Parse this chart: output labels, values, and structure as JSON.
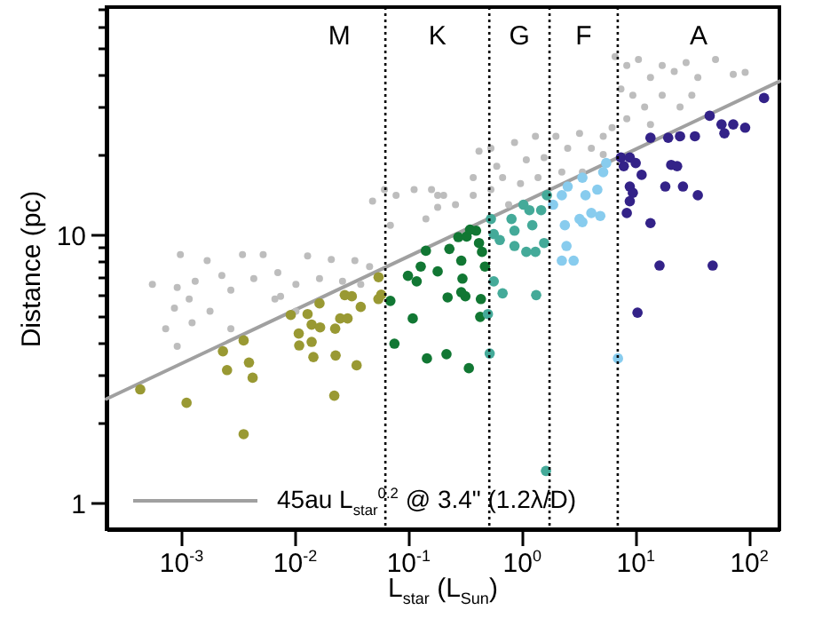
{
  "chart_data": {
    "type": "scatter",
    "xlabel": "L$_{star}$ (L$_{Sun}$)",
    "ylabel": "Distance (pc)",
    "log": "xy",
    "marker": "circle",
    "legend": "bottom left",
    "xlim": [
      0.000217,
      183
    ],
    "ylim": [
      0.8,
      71
    ],
    "xticks": [
      {
        "value": 0.001,
        "label": "10$^{-3}$"
      },
      {
        "value": 0.01,
        "label": "10$^{-2}$"
      },
      {
        "value": 0.1,
        "label": "10$^{-1}$"
      },
      {
        "value": 1,
        "label": "10$^{0}$"
      },
      {
        "value": 10,
        "label": "10$^{1}$"
      },
      {
        "value": 100,
        "label": "10$^{2}$"
      }
    ],
    "yticks": [
      1,
      {
        "value": 2,
        "label": null
      },
      {
        "value": 3,
        "label": null
      },
      {
        "value": 4,
        "label": null
      },
      {
        "value": 5,
        "label": null
      },
      {
        "value": 6,
        "label": null
      },
      {
        "value": 7,
        "label": null
      },
      {
        "value": 8,
        "label": null
      },
      {
        "value": 9,
        "label": null
      },
      10,
      {
        "value": 20,
        "label": null
      },
      {
        "value": 30,
        "label": null
      },
      {
        "value": 40,
        "label": null
      },
      {
        "value": 50,
        "label": null
      },
      {
        "value": 60,
        "label": null
      },
      {
        "value": 70,
        "label": null
      }
    ],
    "ref_lines": [
      {
        "axis": "x",
        "value": 0.062,
        "color": "#000000",
        "line_style": "dotted"
      },
      {
        "axis": "x",
        "value": 0.51,
        "color": "#000000",
        "line_style": "dotted"
      },
      {
        "axis": "x",
        "value": 1.73,
        "color": "#000000",
        "line_style": "dotted"
      },
      {
        "axis": "x",
        "value": 6.9,
        "color": "#000000",
        "line_style": "dotted"
      }
    ],
    "annotations": [
      "M",
      "K",
      "G",
      "F",
      "A"
    ],
    "series": [
      {
        "color": "#bdbdbd",
        "x": [
          0.00055,
          0.00091,
          0.00097,
          0.00167,
          0.00225,
          0.00342,
          0.0052,
          0.0043,
          0.00116,
          0.00177,
          0.0074,
          0.0128,
          0.0207,
          0.0334,
          0.045,
          0.0478,
          0.0608,
          0.077,
          0.111,
          0.0686,
          0.141,
          0.179,
          0.0163,
          0.0101,
          0.007,
          0.00131,
          0.0027,
          0.026,
          0.0376,
          0.0101,
          0.00086,
          0.00072,
          0.00091,
          0.0027,
          0.00123,
          0.0066,
          0.158,
          0.202,
          0.257,
          0.368,
          0.414,
          0.527,
          0.593,
          0.851,
          1.08,
          1.3,
          1.55,
          1.97,
          2.5,
          3.18,
          4.04,
          5.14,
          6.15,
          6.54,
          8.29,
          10.5,
          13.4,
          17.0,
          21.7,
          27.6,
          35,
          50.1,
          71.8,
          91.4,
          9.37,
          11.9,
          17.0,
          24.4,
          7.36,
          31,
          13.4,
          8.29,
          5.14,
          3.37,
          2.22,
          1.37,
          0.96,
          0.668,
          0.527,
          0.368,
          0.755,
          0.179
        ],
        "values": [
          6.56,
          6.38,
          8.46,
          8.04,
          7.08,
          8.46,
          8.46,
          6.89,
          5.78,
          5.21,
          5.92,
          8.37,
          8.12,
          8.04,
          7.64,
          13.4,
          14.8,
          14.1,
          14.8,
          10.9,
          11.5,
          14.1,
          6.89,
          6.56,
          7.26,
          6.73,
          6.24,
          6.73,
          6.56,
          5.21,
          5.35,
          4.48,
          3.85,
          4.48,
          4.71,
          5.78,
          14.8,
          14.1,
          13.0,
          14.1,
          20.6,
          21.1,
          18.1,
          22.2,
          19.1,
          23.4,
          19.5,
          23.4,
          21.1,
          24.0,
          21.1,
          23.4,
          25.2,
          46.4,
          43.0,
          45.3,
          38.8,
          43.0,
          40.8,
          44.1,
          38.8,
          45.3,
          39.8,
          40.5,
          33.3,
          30.1,
          33.3,
          30.1,
          35.1,
          33.3,
          25.9,
          27.2,
          20.0,
          17.2,
          17.2,
          16.4,
          15.6,
          16.4,
          14.8,
          16.4,
          13.0,
          12.7
        ]
      },
      {
        "color": "#999933",
        "x": [
          0.00043,
          0.0011,
          0.0035,
          0.0023,
          0.0025,
          0.0035,
          0.0039,
          0.0042,
          0.0091,
          0.0107,
          0.0108,
          0.0128,
          0.0139,
          0.0139,
          0.0144,
          0.0163,
          0.0165,
          0.0224,
          0.022,
          0.0226,
          0.0248,
          0.0288,
          0.0272,
          0.0314,
          0.0376,
          0.0346,
          0.0538,
          0.054,
          0.057
        ],
        "values": [
          2.66,
          2.37,
          1.81,
          3.69,
          3.14,
          4.05,
          3.35,
          2.94,
          5.04,
          4.3,
          3.88,
          5.08,
          4.64,
          4.0,
          3.51,
          5.57,
          4.53,
          4.48,
          2.52,
          3.56,
          4.89,
          4.89,
          5.98,
          5.92,
          5.4,
          3.27,
          5.78,
          6.97,
          6.0
        ]
      },
      {
        "color": "#117733",
        "x": [
          0.0686,
          0.0745,
          0.108,
          0.144,
          0.214,
          0.337,
          0.219,
          0.314,
          0.43,
          0.424,
          0.289,
          0.296,
          0.289,
          0.39,
          0.414,
          0.44,
          0.467,
          0.272,
          0.227,
          0.117,
          0.179,
          0.141,
          0.127,
          0.098,
          0.322,
          0.345
        ],
        "values": [
          5.69,
          3.94,
          4.89,
          3.47,
          3.6,
          3.19,
          5.86,
          5.92,
          5.78,
          4.96,
          8.04,
          6.89,
          6.13,
          10.4,
          9.35,
          8.67,
          7.64,
          9.84,
          8.89,
          6.73,
          7.33,
          8.75,
          7.64,
          7.06,
          9.89,
          10.5
        ]
      },
      {
        "color": "#44aa99",
        "x": [
          0.527,
          0.558,
          0.631,
          0.8,
          0.85,
          0.85,
          1.02,
          1.15,
          1.22,
          1.3,
          1.55,
          1.46,
          1.64,
          1.08,
          0.668,
          0.558,
          0.496,
          0.514,
          1.32,
          1.61
        ],
        "values": [
          11.5,
          10.1,
          9.6,
          11.5,
          10.4,
          9.12,
          13.0,
          12.4,
          10.9,
          8.67,
          9.35,
          12.4,
          14.1,
          8.67,
          6.07,
          6.73,
          5.08,
          3.62,
          5.98,
          1.32
        ]
      },
      {
        "color": "#88ccee",
        "x": [
          1.86,
          2.22,
          2.5,
          2.36,
          2.22,
          2.82,
          3.37,
          3.59,
          3.18,
          4.04,
          4.56,
          5.14,
          5.46,
          4.84,
          3.37,
          2.44,
          6.93
        ],
        "values": [
          13.0,
          14.1,
          15.2,
          10.9,
          8.04,
          8.04,
          16.4,
          14.1,
          11.5,
          12.1,
          14.8,
          17.2,
          18.6,
          11.8,
          11.2,
          9.12,
          3.47
        ]
      },
      {
        "color": "#332288",
        "x": [
          7.36,
          8.81,
          7.8,
          9.93,
          11.2,
          8.81,
          9.37,
          8.81,
          8.29,
          13.4,
          19.2,
          24.4,
          33,
          44.5,
          56.6,
          60,
          71.8,
          91.4,
          134,
          20.4,
          23.0,
          18.1,
          25.9,
          35,
          13.4,
          16.1,
          47.3,
          10.3
        ],
        "values": [
          19.5,
          19.5,
          18.1,
          18.6,
          16.8,
          15.2,
          14.4,
          13.4,
          12.1,
          23.1,
          23.1,
          23.4,
          23.4,
          27.9,
          25.9,
          24.0,
          25.9,
          25.2,
          32.5,
          18.3,
          18.1,
          15.2,
          15.2,
          14.1,
          11.1,
          7.71,
          7.71,
          5.14
        ]
      },
      {
        "type": "line",
        "marker": "none",
        "name": "45au L$_{star}$$^{0.2}$ @ 3.4\" (1.2λ/D)",
        "color": "#a0a0a0",
        "x": [
          0.000217,
          183
        ],
        "values": [
          2.45,
          37.5
        ]
      }
    ]
  }
}
